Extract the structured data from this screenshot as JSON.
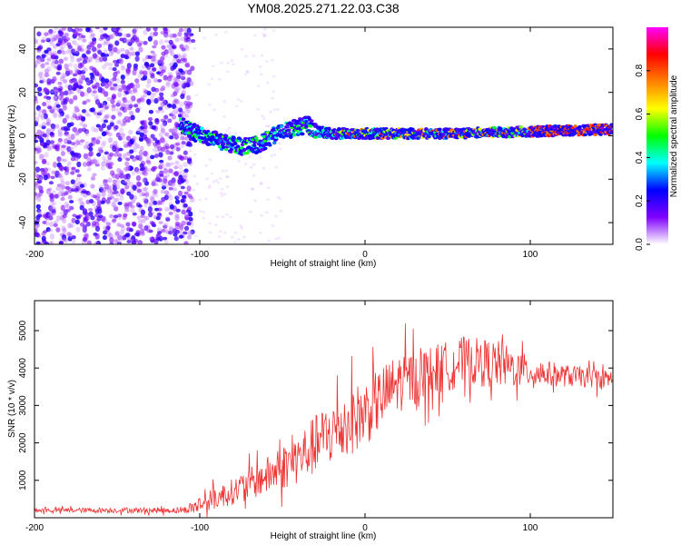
{
  "title": "YM08.2025.271.22.03.C38",
  "chart_data": [
    {
      "type": "heatmap",
      "name": "spectrogram",
      "xlabel": "Height of straight line (km)",
      "ylabel": "Frequency (Hz)",
      "xlim": [
        -200,
        150
      ],
      "ylim": [
        -50,
        50
      ],
      "xticks": [
        -200,
        -100,
        0,
        100
      ],
      "yticks": [
        -40,
        -20,
        0,
        20,
        40
      ],
      "colorbar": {
        "label": "Normalized spectral amplitude",
        "range": [
          0,
          1
        ],
        "ticks": [
          "0.0",
          "0.2",
          "0.4",
          "0.6",
          "0.8"
        ],
        "tick_values": [
          0.0,
          0.2,
          0.4,
          0.6,
          0.8
        ],
        "colors": [
          "#ffffff",
          "#8000ff",
          "#0000ff",
          "#00ffff",
          "#00ff00",
          "#ffff00",
          "#ff8000",
          "#ff0000",
          "#ff00ff"
        ]
      },
      "ridge": {
        "points": [
          [
            -112,
            6
          ],
          [
            -105,
            2
          ],
          [
            -95,
            -1
          ],
          [
            -85,
            -3
          ],
          [
            -75,
            -5
          ],
          [
            -65,
            -4
          ],
          [
            -55,
            0
          ],
          [
            -45,
            3
          ],
          [
            -35,
            5
          ],
          [
            -28,
            2
          ],
          [
            -20,
            1
          ],
          [
            0,
            1
          ],
          [
            50,
            1
          ],
          [
            100,
            2
          ],
          [
            150,
            3
          ]
        ],
        "noise_region_end": -110
      }
    },
    {
      "type": "line",
      "name": "snr",
      "xlabel": "Height of straight line (km)",
      "ylabel": "SNR (10 * v/v)",
      "xlim": [
        -200,
        150
      ],
      "ylim": [
        0,
        5800
      ],
      "xticks": [
        -200,
        -100,
        0,
        100
      ],
      "yticks": [
        1000,
        2000,
        3000,
        4000,
        5000
      ],
      "color": "#ee3333",
      "envelope": {
        "x": [
          -200,
          -110,
          -100,
          -80,
          -60,
          -40,
          -20,
          0,
          20,
          40,
          60,
          80,
          100,
          120,
          150
        ],
        "y": [
          200,
          200,
          350,
          700,
          1100,
          1600,
          2300,
          2800,
          3600,
          3900,
          4200,
          4100,
          3900,
          3800,
          3700
        ],
        "spread": [
          60,
          80,
          250,
          350,
          500,
          700,
          900,
          900,
          800,
          700,
          650,
          650,
          400,
          300,
          250
        ]
      }
    }
  ]
}
